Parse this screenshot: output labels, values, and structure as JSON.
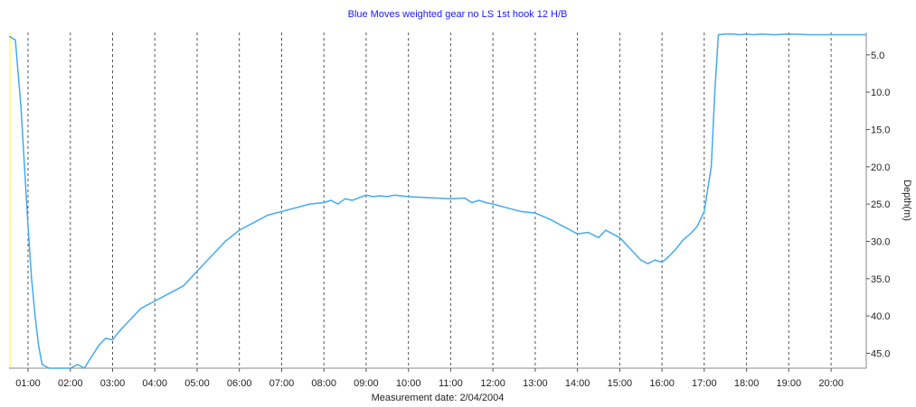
{
  "chart_data": {
    "type": "line",
    "title": "Blue Moves weighted gear no LS 1st hook 12 H/B",
    "xlabel": "Measurement date: 2/04/2004",
    "ylabel": "Depth(m)",
    "x_ticks": [
      "01:00",
      "02:00",
      "03:00",
      "04:00",
      "05:00",
      "06:00",
      "07:00",
      "08:00",
      "09:00",
      "10:00",
      "11:00",
      "12:00",
      "13:00",
      "14:00",
      "15:00",
      "16:00",
      "17:00",
      "18:00",
      "19:00",
      "20:00"
    ],
    "y_ticks": [
      "5.0",
      "10.0",
      "15.0",
      "20.0",
      "25.0",
      "30.0",
      "35.0",
      "40.0",
      "45.0"
    ],
    "xlim": [
      "00:33",
      "20:50"
    ],
    "ylim": [
      2.0,
      47.0
    ],
    "y_inverted": true,
    "grid": "vertical dashed",
    "colors": {
      "line": "#44aaee",
      "title": "#1a1aff",
      "grid": "#555555",
      "axis": "#ffff00"
    },
    "series": [
      {
        "x": [
          "00:33",
          "00:42",
          "00:50",
          "00:55",
          "01:00",
          "01:05",
          "01:10",
          "01:15",
          "01:20",
          "01:30",
          "01:45",
          "02:00",
          "02:10",
          "02:20",
          "02:30",
          "02:40",
          "02:50",
          "03:00",
          "03:10",
          "03:20",
          "03:30",
          "03:40",
          "03:50",
          "04:00",
          "04:20",
          "04:40",
          "05:00",
          "05:20",
          "05:40",
          "06:00",
          "06:20",
          "06:40",
          "07:00",
          "07:20",
          "07:40",
          "08:00",
          "08:10",
          "08:20",
          "08:30",
          "08:40",
          "09:00",
          "09:10",
          "09:20",
          "09:30",
          "09:40",
          "10:00",
          "10:20",
          "10:40",
          "11:00",
          "11:20",
          "11:30",
          "11:40",
          "11:50",
          "12:00",
          "12:20",
          "12:40",
          "13:00",
          "13:20",
          "13:40",
          "14:00",
          "14:15",
          "14:30",
          "14:40",
          "14:50",
          "15:00",
          "15:10",
          "15:20",
          "15:30",
          "15:40",
          "15:50",
          "16:00",
          "16:10",
          "16:20",
          "16:30",
          "16:40",
          "16:50",
          "17:00",
          "17:10",
          "17:15",
          "17:20",
          "17:30",
          "17:40",
          "17:50",
          "18:00",
          "18:10",
          "18:20",
          "18:40",
          "19:00",
          "19:30",
          "20:00",
          "20:30",
          "20:50"
        ],
        "y": [
          2.5,
          3.0,
          12.0,
          20.0,
          28.0,
          35.0,
          40.0,
          44.0,
          46.5,
          47.0,
          47.0,
          47.2,
          46.5,
          47.0,
          45.5,
          44.0,
          43.0,
          43.2,
          42.0,
          41.0,
          40.0,
          39.0,
          38.5,
          38.0,
          37.0,
          36.0,
          34.0,
          32.0,
          30.0,
          28.5,
          27.5,
          26.5,
          26.0,
          25.5,
          25.0,
          24.8,
          24.5,
          25.0,
          24.3,
          24.5,
          23.8,
          24.0,
          23.9,
          24.0,
          23.8,
          24.0,
          24.1,
          24.2,
          24.3,
          24.2,
          24.8,
          24.5,
          24.8,
          25.0,
          25.5,
          26.0,
          26.2,
          27.0,
          28.0,
          29.0,
          28.8,
          29.5,
          28.5,
          29.0,
          29.5,
          30.5,
          31.5,
          32.5,
          33.0,
          32.5,
          32.8,
          32.0,
          31.0,
          29.8,
          29.0,
          28.0,
          26.0,
          20.0,
          10.0,
          2.3,
          2.2,
          2.2,
          2.3,
          2.2,
          2.3,
          2.2,
          2.3,
          2.2,
          2.3,
          2.3,
          2.3,
          2.3
        ]
      }
    ]
  }
}
